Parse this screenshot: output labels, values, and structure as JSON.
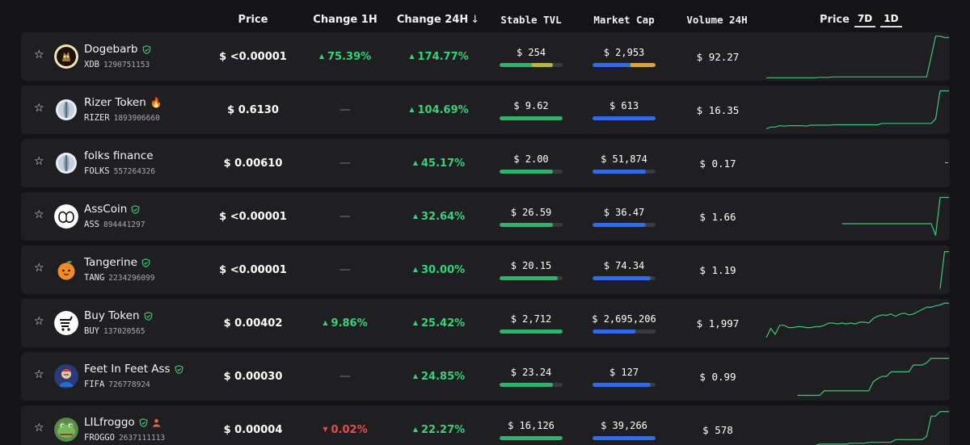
{
  "header": {
    "price": "Price",
    "change_1h": "Change 1H",
    "change_24h": "Change 24H",
    "sort_arrow": "↓",
    "stable_tvl": "Stable TVL",
    "market_cap": "Market Cap",
    "volume_24h": "Volume 24H",
    "chart_label": "Price",
    "range_7d": "7D",
    "range_1d": "1D"
  },
  "colors": {
    "up": "#39d17a",
    "down": "#ef4a4a",
    "tvl_bar": "#34b06e",
    "mcap_bar": "#2e6fe0"
  },
  "tokens": [
    {
      "name": "Dogebarb",
      "verified": true,
      "fire": false,
      "extra_badge": false,
      "symbol": "XDB",
      "id": "1290751153",
      "logo": "doge-logo",
      "price": "$ <0.00001",
      "ch1h": "75.39%",
      "ch1h_dir": "up",
      "ch24h": "174.77%",
      "ch24h_dir": "up",
      "tvl": "$ 254",
      "tvl_fill": 0.85,
      "tvl_mixed": true,
      "mcap": "$ 2,953",
      "mcap_fill": 1.0,
      "mcap_mixed": true,
      "vol": "$ 92.27",
      "spark": [
        0.97,
        0.97,
        0.97,
        0.97,
        0.97,
        0.97,
        0.97,
        0.97,
        0.97,
        0.97,
        0.97,
        0.97,
        0.96,
        0.96,
        0.96,
        0.95,
        0.95,
        0.95,
        0.95,
        0.95,
        0.95,
        0.95,
        0.95,
        0.95,
        0.95,
        0.95,
        0.95,
        0.95,
        0.95,
        0.95,
        0.95,
        0.95,
        0.95,
        0.95,
        0.95,
        0.95,
        0.95,
        0.5,
        0.05,
        0.05,
        0.08,
        0.08
      ]
    },
    {
      "name": "Rizer Token",
      "verified": false,
      "fire": true,
      "extra_badge": false,
      "symbol": "RIZER",
      "id": "1893906660",
      "logo": "rizer-logo",
      "price": "$ 0.6130",
      "ch1h": "—",
      "ch1h_dir": "flat",
      "ch24h": "104.69%",
      "ch24h_dir": "up",
      "tvl": "$ 9.62",
      "tvl_fill": 1.0,
      "tvl_mixed": false,
      "mcap": "$ 613",
      "mcap_fill": 1.0,
      "mcap_mixed": false,
      "vol": "$ 16.35",
      "spark": [
        0.92,
        0.88,
        0.88,
        0.85,
        0.86,
        0.85,
        0.85,
        0.85,
        0.85,
        0.86,
        0.84,
        0.84,
        0.84,
        0.84,
        0.84,
        0.83,
        0.83,
        0.83,
        0.83,
        0.83,
        0.83,
        0.83,
        0.83,
        0.83,
        0.83,
        0.83,
        0.8,
        0.8,
        0.8,
        0.8,
        0.8,
        0.8,
        0.8,
        0.8,
        0.8,
        0.8,
        0.8,
        0.8,
        0.7,
        0.08,
        0.08,
        0.08
      ]
    },
    {
      "name": "folks finance",
      "verified": false,
      "fire": false,
      "extra_badge": false,
      "symbol": "FOLKS",
      "id": "557264326",
      "logo": "folks-logo",
      "price": "$ 0.00610",
      "ch1h": "—",
      "ch1h_dir": "flat",
      "ch24h": "45.17%",
      "ch24h_dir": "up",
      "tvl": "$ 2.00",
      "tvl_fill": 0.85,
      "tvl_mixed": false,
      "mcap": "$ 51,874",
      "mcap_fill": 0.85,
      "mcap_mixed": false,
      "vol": "$ 0.17",
      "spark": []
    },
    {
      "name": "AssCoin",
      "verified": true,
      "fire": false,
      "extra_badge": false,
      "symbol": "ASS",
      "id": "894441297",
      "logo": "asscoin-logo",
      "price": "$ <0.00001",
      "ch1h": "—",
      "ch1h_dir": "flat",
      "ch24h": "32.64%",
      "ch24h_dir": "up",
      "tvl": "$ 26.59",
      "tvl_fill": 0.85,
      "tvl_mixed": false,
      "mcap": "$ 36.47",
      "mcap_fill": 0.85,
      "mcap_mixed": false,
      "vol": "$ 1.66",
      "spark": [
        null,
        null,
        null,
        null,
        null,
        null,
        null,
        null,
        null,
        null,
        null,
        null,
        null,
        null,
        null,
        null,
        null,
        0.66,
        0.66,
        0.66,
        0.66,
        0.66,
        0.66,
        0.66,
        0.66,
        0.66,
        0.66,
        0.66,
        0.66,
        0.66,
        0.66,
        0.66,
        0.66,
        0.66,
        0.66,
        0.66,
        0.66,
        0.66,
        0.92,
        0.08,
        0.08,
        0.08
      ]
    },
    {
      "name": "Tangerine",
      "verified": true,
      "fire": false,
      "extra_badge": false,
      "symbol": "TANG",
      "id": "2234296099",
      "logo": "tangerine-logo",
      "price": "$ <0.00001",
      "ch1h": "—",
      "ch1h_dir": "flat",
      "ch24h": "30.00%",
      "ch24h_dir": "up",
      "tvl": "$ 20.15",
      "tvl_fill": 0.92,
      "tvl_mixed": false,
      "mcap": "$ 74.34",
      "mcap_fill": 0.92,
      "mcap_mixed": false,
      "vol": "$ 1.19",
      "spark": [
        null,
        null,
        null,
        null,
        null,
        null,
        null,
        null,
        null,
        null,
        null,
        null,
        null,
        null,
        null,
        null,
        null,
        null,
        null,
        null,
        null,
        null,
        null,
        null,
        null,
        null,
        null,
        null,
        null,
        null,
        null,
        null,
        null,
        null,
        null,
        null,
        null,
        null,
        null,
        0.92,
        0.1,
        0.1
      ]
    },
    {
      "name": "Buy Token",
      "verified": true,
      "fire": false,
      "extra_badge": false,
      "symbol": "BUY",
      "id": "137020565",
      "logo": "buy-logo",
      "price": "$ 0.00402",
      "ch1h": "9.86%",
      "ch1h_dir": "up",
      "ch24h": "25.42%",
      "ch24h_dir": "up",
      "tvl": "$ 2,712",
      "tvl_fill": 1.0,
      "tvl_mixed": false,
      "mcap": "$ 2,695,206",
      "mcap_fill": 0.68,
      "mcap_mixed": false,
      "vol": "$ 1,997",
      "spark": [
        0.82,
        0.62,
        0.75,
        0.55,
        0.55,
        0.6,
        0.6,
        0.58,
        0.58,
        0.6,
        0.6,
        0.58,
        0.58,
        0.55,
        0.5,
        0.5,
        0.52,
        0.5,
        0.52,
        0.5,
        0.52,
        0.48,
        0.48,
        0.5,
        0.4,
        0.35,
        0.32,
        0.33,
        0.3,
        0.35,
        0.3,
        0.28,
        0.32,
        0.3,
        0.25,
        0.2,
        0.15,
        0.15,
        0.12,
        0.1,
        0.06,
        0.06
      ]
    },
    {
      "name": "Feet In Feet Ass",
      "verified": true,
      "fire": false,
      "extra_badge": false,
      "symbol": "FIFA",
      "id": "726778924",
      "logo": "fifa-logo",
      "price": "$ 0.00030",
      "ch1h": "—",
      "ch1h_dir": "flat",
      "ch24h": "24.85%",
      "ch24h_dir": "up",
      "tvl": "$ 23.24",
      "tvl_fill": 0.85,
      "tvl_mixed": false,
      "mcap": "$ 127",
      "mcap_fill": 0.92,
      "mcap_mixed": false,
      "vol": "$ 0.99",
      "spark": [
        null,
        null,
        null,
        null,
        null,
        null,
        null,
        0.92,
        0.92,
        0.92,
        0.92,
        0.92,
        0.92,
        0.82,
        0.82,
        0.82,
        0.82,
        0.82,
        0.82,
        0.82,
        0.82,
        0.82,
        0.82,
        0.82,
        0.62,
        0.55,
        0.5,
        0.5,
        0.4,
        0.4,
        0.4,
        0.4,
        0.4,
        0.25,
        0.25,
        0.25,
        0.2,
        0.1,
        0.1,
        0.1,
        0.1,
        0.1
      ]
    },
    {
      "name": "LILfroggo",
      "verified": true,
      "fire": false,
      "extra_badge": true,
      "symbol": "FROGGO",
      "id": "2637111113",
      "logo": "froggo-logo",
      "price": "$ 0.00004",
      "ch1h": "0.02%",
      "ch1h_dir": "down",
      "ch24h": "22.27%",
      "ch24h_dir": "up",
      "tvl": "$ 16,126",
      "tvl_fill": 1.0,
      "tvl_mixed": false,
      "mcap": "$ 39,266",
      "mcap_fill": 1.0,
      "mcap_mixed": false,
      "vol": "$ 578",
      "spark": [
        0.95,
        0.95,
        0.88,
        0.88,
        0.88,
        0.88,
        0.85,
        0.85,
        0.85,
        0.85,
        0.85,
        0.85,
        0.82,
        0.82,
        0.82,
        0.82,
        0.82,
        0.82,
        0.82,
        0.8,
        0.8,
        0.8,
        0.8,
        0.78,
        0.78,
        0.78,
        0.78,
        0.78,
        0.78,
        0.72,
        0.72,
        0.72,
        0.72,
        0.72,
        0.72,
        0.72,
        0.65,
        0.2,
        0.2,
        0.1,
        0.1,
        0.1
      ]
    }
  ]
}
